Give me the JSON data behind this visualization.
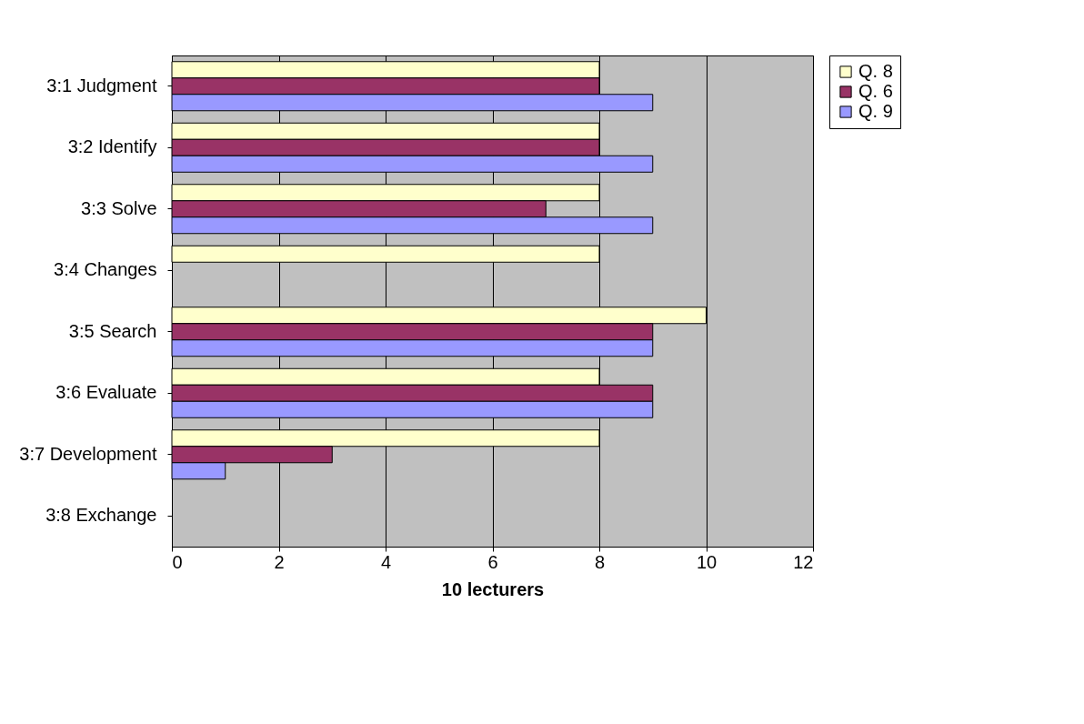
{
  "chart_data": {
    "type": "bar",
    "orientation": "horizontal",
    "xlabel": "10 lecturers",
    "categories": [
      "3:1 Judgment",
      "3:2 Identify",
      "3:3 Solve",
      "3:4 Changes",
      "3:5 Search",
      "3:6 Evaluate",
      "3:7 Development",
      "3:8 Exchange"
    ],
    "series": [
      {
        "name": "Q. 8",
        "color": "#ffffcc",
        "values": [
          8,
          8,
          8,
          8,
          10,
          8,
          8,
          null
        ]
      },
      {
        "name": "Q. 6",
        "color": "#993366",
        "values": [
          8,
          8,
          7,
          null,
          9,
          9,
          3,
          null
        ]
      },
      {
        "name": "Q. 9",
        "color": "#9999ff",
        "values": [
          9,
          9,
          9,
          null,
          9,
          9,
          1,
          null
        ]
      }
    ],
    "xlim": [
      0,
      12
    ],
    "xticks": [
      0,
      2,
      4,
      6,
      8,
      10,
      12
    ],
    "grid": "x",
    "legend": "right"
  }
}
